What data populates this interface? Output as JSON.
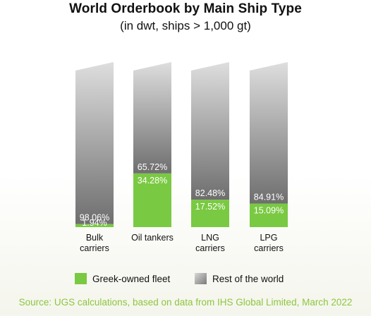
{
  "title": "World Orderbook by Main Ship Type",
  "subtitle": "(in dwt, ships > 1,000 gt)",
  "colors": {
    "greek": "#7ac943",
    "rest_top": "#dcdcdc",
    "rest_bottom": "#6f6f6f"
  },
  "chart_data": {
    "type": "bar",
    "stacked": true,
    "percent_scale": true,
    "categories": [
      [
        "Bulk",
        "carriers"
      ],
      [
        "Oil tankers"
      ],
      [
        "LNG",
        "carriers"
      ],
      [
        "LPG",
        "carriers"
      ]
    ],
    "series": [
      {
        "name": "Greek-owned fleet",
        "values": [
          1.94,
          34.28,
          17.52,
          15.09
        ],
        "labels": [
          "1.94%",
          "34.28%",
          "17.52%",
          "15.09%"
        ]
      },
      {
        "name": "Rest of the world",
        "values": [
          98.06,
          65.72,
          82.48,
          84.91
        ],
        "labels": [
          "98.06%",
          "65.72%",
          "82.48%",
          "84.91%"
        ]
      }
    ],
    "ylim": [
      0,
      100
    ],
    "legend_position": "bottom"
  },
  "legend": {
    "greek_label": "Greek-owned fleet",
    "rest_label": "Rest of the world"
  },
  "source": "Source: UGS calculations, based on data from IHS Global Limited, March 2022"
}
